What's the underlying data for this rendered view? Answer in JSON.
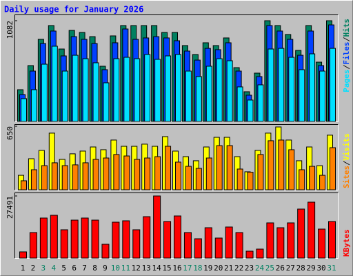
{
  "chart_data": [
    {
      "type": "bar",
      "title": "Daily usage for January 2026",
      "ylim": [
        0,
        1082
      ],
      "yticks": [
        1082
      ],
      "series": [
        {
          "name": "Hits",
          "color": "#008060",
          "values": [
            341,
            600,
            882,
            1030,
            778,
            978,
            956,
            911,
            593,
            919,
            1030,
            1030,
            1030,
            1030,
            956,
            956,
            815,
            719,
            845,
            815,
            897,
            578,
            319,
            519,
            1082,
            1030,
            934,
            763,
            1030,
            637,
            1082
          ]
        },
        {
          "name": "Files",
          "color": "#0040ff",
          "values": [
            289,
            541,
            837,
            971,
            704,
            911,
            882,
            837,
            556,
            845,
            993,
            882,
            897,
            911,
            897,
            867,
            756,
            659,
            785,
            771,
            845,
            541,
            282,
            482,
            1030,
            971,
            882,
            711,
            971,
            600,
            1037
          ]
        },
        {
          "name": "Pages",
          "color": "#00e0ff",
          "values": [
            245,
            341,
            615,
            808,
            541,
            711,
            674,
            630,
            415,
            674,
            689,
            674,
            719,
            667,
            704,
            719,
            541,
            482,
            593,
            674,
            652,
            371,
            230,
            393,
            778,
            785,
            689,
            556,
            726,
            541,
            785
          ]
        }
      ]
    },
    {
      "type": "bar",
      "ylim": [
        0,
        650
      ],
      "yticks": [
        650
      ],
      "series": [
        {
          "name": "Visits",
          "color": "#ffff00",
          "values": [
            148,
            318,
            403,
            580,
            311,
            368,
            396,
            438,
            410,
            509,
            445,
            445,
            467,
            445,
            544,
            396,
            339,
            297,
            438,
            537,
            537,
            339,
            184,
            403,
            580,
            643,
            509,
            297,
            438,
            247,
            559
          ]
        },
        {
          "name": "Sites",
          "color": "#ff8000",
          "values": [
            92,
            205,
            247,
            276,
            247,
            255,
            276,
            311,
            325,
            361,
            346,
            311,
            325,
            339,
            445,
            283,
            240,
            219,
            325,
            452,
            452,
            212,
            180,
            361,
            502,
            509,
            410,
            205,
            240,
            148,
            431
          ]
        }
      ]
    },
    {
      "type": "bar",
      "ylim": [
        0,
        27491
      ],
      "yticks": [
        27491
      ],
      "series": [
        {
          "name": "KBytes",
          "color": "#ff0000",
          "values": [
            2750,
            11300,
            17720,
            18940,
            12530,
            16800,
            17720,
            16800,
            6110,
            15890,
            16500,
            12530,
            18330,
            27491,
            16190,
            18640,
            11300,
            8550,
            13440,
            8860,
            13750,
            11300,
            3060,
            3970,
            15580,
            13440,
            15580,
            21690,
            24750,
            12830,
            16190
          ]
        }
      ],
      "categories": [
        "1",
        "2",
        "3",
        "4",
        "5",
        "6",
        "7",
        "8",
        "9",
        "10",
        "11",
        "12",
        "13",
        "14",
        "15",
        "16",
        "17",
        "18",
        "19",
        "20",
        "21",
        "22",
        "23",
        "24",
        "25",
        "26",
        "27",
        "28",
        "29",
        "30",
        "31"
      ],
      "label_colors": [
        "#000000",
        "#000000",
        "#008060",
        "#008060",
        "#000000",
        "#000000",
        "#000000",
        "#000000",
        "#000000",
        "#008060",
        "#008060",
        "#000000",
        "#000000",
        "#000000",
        "#000000",
        "#000000",
        "#008060",
        "#008060",
        "#000000",
        "#000000",
        "#000000",
        "#000000",
        "#000000",
        "#008060",
        "#008060",
        "#000000",
        "#000000",
        "#000000",
        "#000000",
        "#000000",
        "#008060"
      ]
    }
  ]
}
